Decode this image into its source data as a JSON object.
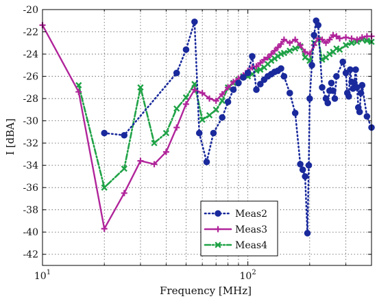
{
  "chart_data": {
    "type": "line",
    "xlabel": "Frequency [MHz]",
    "ylabel": "I [dBA]",
    "xscale": "log",
    "xlim": [
      10,
      400
    ],
    "ylim": [
      -43,
      -20
    ],
    "grid": true,
    "legend_position": "bottom-center",
    "y_ticks": [
      -20,
      -22,
      -24,
      -26,
      -28,
      -30,
      -32,
      -34,
      -36,
      -38,
      -40,
      -42
    ],
    "x_major_ticks": [
      {
        "value": 10,
        "base": "10",
        "exp": "1"
      },
      {
        "value": 100,
        "base": "10",
        "exp": "2"
      }
    ],
    "x_minor_grid": [
      20,
      30,
      40,
      50,
      60,
      70,
      80,
      90,
      200,
      300
    ],
    "series": [
      {
        "name": "Meas2",
        "color": "#1a2a9c",
        "line_style": "dotted",
        "marker": "circle",
        "x": [
          20,
          25,
          45,
          50,
          55,
          58,
          63,
          68,
          75,
          80,
          85,
          90,
          95,
          100,
          105,
          110,
          115,
          120,
          125,
          130,
          135,
          140,
          145,
          150,
          160,
          170,
          180,
          185,
          190,
          195,
          198,
          200,
          205,
          210,
          215,
          220,
          230,
          240,
          245,
          250,
          255,
          260,
          265,
          270,
          290,
          300,
          305,
          310,
          315,
          320,
          325,
          330,
          335,
          340,
          345,
          350,
          355,
          360,
          380,
          400
        ],
        "y": [
          -31.1,
          -31.3,
          -25.7,
          -23.6,
          -21.1,
          -31.1,
          -33.7,
          -31.1,
          -29.7,
          -28.3,
          -27.2,
          -26.6,
          -26.1,
          -25.7,
          -24.2,
          -27.2,
          -26.7,
          -26.3,
          -26.0,
          -25.8,
          -25.6,
          -25.5,
          -25.3,
          -26.0,
          -27.5,
          -29.3,
          -33.9,
          -34.4,
          -35.0,
          -40.1,
          -34.0,
          -28.0,
          -25.0,
          -22.3,
          -21.0,
          -21.4,
          -27.0,
          -28.0,
          -28.4,
          -27.3,
          -26.6,
          -27.3,
          -28.0,
          -26.0,
          -24.7,
          -25.7,
          -27.5,
          -27.8,
          -25.4,
          -26.5,
          -27.1,
          -26.6,
          -25.4,
          -27.0,
          -28.8,
          -29.2,
          -27.5,
          -26.8,
          -29.6,
          -30.6
        ]
      },
      {
        "name": "Meas3",
        "color": "#b0249a",
        "line_style": "solid",
        "marker": "plus",
        "x": [
          10,
          15,
          20,
          25,
          30,
          35,
          40,
          45,
          50,
          55,
          60,
          65,
          70,
          75,
          80,
          85,
          90,
          95,
          100,
          105,
          110,
          115,
          120,
          125,
          130,
          135,
          140,
          145,
          150,
          160,
          170,
          180,
          190,
          200,
          210,
          220,
          230,
          240,
          250,
          260,
          270,
          280,
          300,
          320,
          340,
          360,
          380,
          400
        ],
        "y": [
          -21.4,
          -27.4,
          -39.7,
          -36.5,
          -33.6,
          -33.9,
          -32.8,
          -30.6,
          -28.5,
          -27.2,
          -27.5,
          -28.0,
          -28.2,
          -27.6,
          -27.0,
          -26.5,
          -26.2,
          -25.9,
          -25.5,
          -25.2,
          -25.1,
          -24.8,
          -24.5,
          -24.3,
          -24.0,
          -23.7,
          -23.4,
          -23.1,
          -22.7,
          -23.0,
          -22.7,
          -23.2,
          -23.8,
          -24.0,
          -23.2,
          -22.6,
          -22.7,
          -23.0,
          -22.7,
          -22.3,
          -22.4,
          -22.6,
          -22.5,
          -22.6,
          -22.7,
          -22.5,
          -22.4,
          -22.4
        ]
      },
      {
        "name": "Meas4",
        "color": "#1fa246",
        "line_style": "dashdot",
        "marker": "x",
        "x": [
          15,
          20,
          25,
          30,
          35,
          40,
          45,
          50,
          55,
          60,
          65,
          70,
          75,
          80,
          85,
          90,
          95,
          100,
          105,
          110,
          115,
          120,
          125,
          130,
          135,
          140,
          145,
          150,
          160,
          170,
          180,
          190,
          200,
          210,
          220,
          230,
          240,
          250,
          260,
          270,
          280,
          300,
          320,
          340,
          360,
          380,
          400
        ],
        "y": [
          -26.8,
          -36.0,
          -34.3,
          -27.0,
          -32.0,
          -31.1,
          -28.9,
          -27.9,
          -26.7,
          -29.9,
          -29.5,
          -29.0,
          -28.2,
          -27.0,
          -26.6,
          -26.3,
          -26.0,
          -26.0,
          -25.8,
          -25.5,
          -25.4,
          -25.2,
          -24.9,
          -24.6,
          -24.4,
          -24.2,
          -24.0,
          -23.9,
          -23.7,
          -23.5,
          -23.3,
          -24.3,
          -24.6,
          -23.0,
          -22.7,
          -24.5,
          -24.3,
          -24.0,
          -23.8,
          -23.5,
          -23.6,
          -23.2,
          -23.0,
          -22.9,
          -22.7,
          -22.8,
          -22.9
        ]
      }
    ]
  }
}
